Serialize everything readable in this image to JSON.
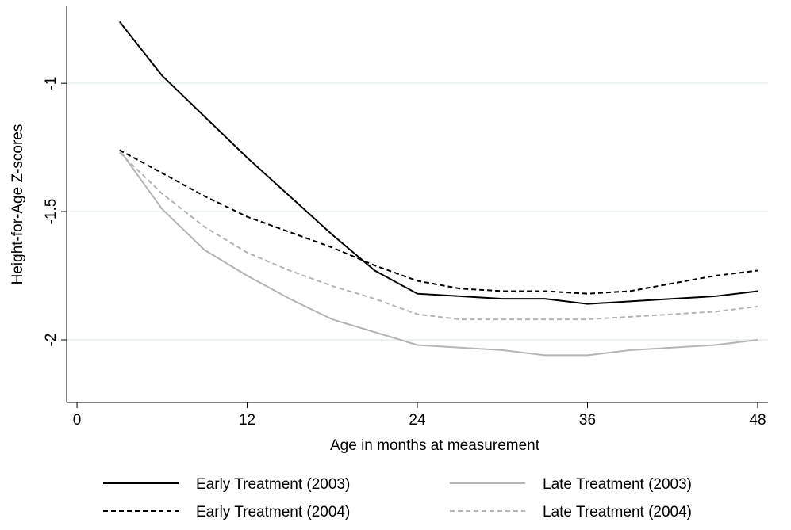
{
  "chart_data": {
    "type": "line",
    "x_label": "Age in months at measurement",
    "y_label": "Height-for-Age Z-scores",
    "x": [
      3,
      6,
      9,
      12,
      15,
      18,
      21,
      24,
      27,
      30,
      33,
      36,
      39,
      42,
      45,
      48
    ],
    "series": [
      {
        "name": "Early Treatment (2003)",
        "color": "#000000",
        "dash": "solid",
        "values": [
          -0.76,
          -0.97,
          -1.13,
          -1.29,
          -1.44,
          -1.59,
          -1.73,
          -1.82,
          -1.83,
          -1.84,
          -1.84,
          -1.86,
          -1.85,
          -1.84,
          -1.83,
          -1.81
        ]
      },
      {
        "name": "Late Treatment (2003)",
        "color": "#b4b4b4",
        "dash": "solid",
        "values": [
          -1.26,
          -1.49,
          -1.65,
          -1.75,
          -1.84,
          -1.92,
          -1.97,
          -2.02,
          -2.03,
          -2.04,
          -2.06,
          -2.06,
          -2.04,
          -2.03,
          -2.02,
          -2.0
        ]
      },
      {
        "name": "Early Treatment (2004)",
        "color": "#000000",
        "dash": "dashed",
        "values": [
          -1.26,
          -1.35,
          -1.44,
          -1.52,
          -1.58,
          -1.64,
          -1.71,
          -1.77,
          -1.8,
          -1.81,
          -1.81,
          -1.82,
          -1.81,
          -1.78,
          -1.75,
          -1.73
        ]
      },
      {
        "name": "Late Treatment (2004)",
        "color": "#b4b4b4",
        "dash": "dashed",
        "values": [
          -1.27,
          -1.43,
          -1.56,
          -1.66,
          -1.73,
          -1.79,
          -1.84,
          -1.9,
          -1.92,
          -1.92,
          -1.92,
          -1.92,
          -1.91,
          -1.9,
          -1.89,
          -1.87
        ]
      }
    ],
    "xlim": [
      -0.73,
      48.73
    ],
    "xticks": [
      0,
      12,
      24,
      36,
      48
    ],
    "ylim": [
      -2.244,
      -0.7
    ],
    "yticks": [
      -1,
      -1.5,
      -2
    ],
    "grid": true,
    "legend": "bottom"
  }
}
